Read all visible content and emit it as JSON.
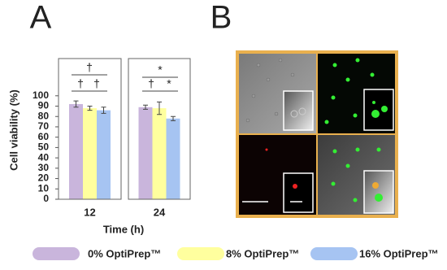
{
  "chart_data": {
    "type": "bar",
    "panel_label": "A",
    "x_label": "Time (h)",
    "y_label": "Cell viability (%)",
    "categories": [
      "12",
      "24"
    ],
    "series": [
      {
        "name": "0% OptiPrep™",
        "color": "#c9b5dc",
        "values": [
          92,
          89
        ],
        "errors": [
          3,
          2
        ]
      },
      {
        "name": "8% OptiPrep™",
        "color": "#ffff9e",
        "values": [
          88,
          88
        ],
        "errors": [
          2,
          6
        ]
      },
      {
        "name": "16% OptiPrep™",
        "color": "#a6c4f2",
        "values": [
          86,
          78
        ],
        "errors": [
          3,
          2
        ]
      }
    ],
    "ylim": [
      0,
      136
    ],
    "yticks": [
      0,
      10,
      20,
      30,
      40,
      50,
      60,
      70,
      80,
      90,
      100
    ],
    "annotations": [
      {
        "text": "†"
      },
      {
        "text": "†"
      },
      {
        "text": "†"
      },
      {
        "text": "*"
      },
      {
        "text": "†"
      },
      {
        "text": "*"
      }
    ]
  },
  "image_panel": {
    "label": "B"
  }
}
